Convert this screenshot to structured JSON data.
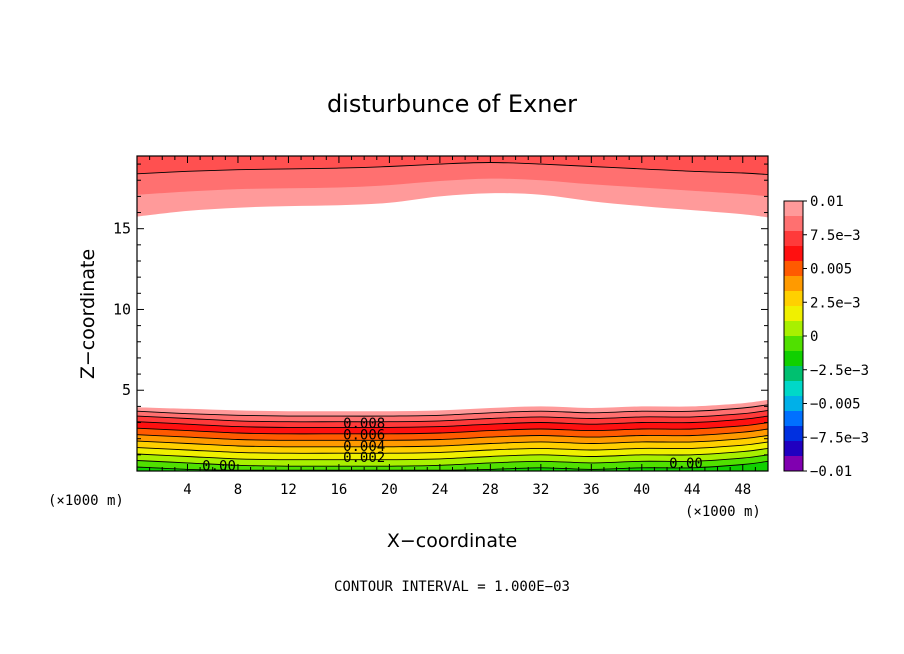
{
  "chart_data": {
    "type": "contour",
    "title": "disturbunce of Exner",
    "xlabel": "X−coordinate",
    "ylabel": "Z−coordinate",
    "x_unit_left": "(×1000 m)",
    "x_unit_right": "(×1000 m)",
    "footer": "CONTOUR INTERVAL = 1.000E−03",
    "xlim": [
      0,
      50
    ],
    "ylim": [
      0,
      19.5
    ],
    "x_ticks": [
      4,
      8,
      12,
      16,
      20,
      24,
      28,
      32,
      36,
      40,
      44,
      48
    ],
    "y_ticks": [
      5,
      10,
      15
    ],
    "contour_interval": 0.001,
    "contour_labels": [
      {
        "text": "0.008",
        "x": 18,
        "y": 2.65
      },
      {
        "text": "0.006",
        "x": 18,
        "y": 1.95
      },
      {
        "text": "0.004",
        "x": 18,
        "y": 1.25
      },
      {
        "text": "0.002",
        "x": 18,
        "y": 0.55
      },
      {
        "text": "0.00",
        "x": 6.5,
        "y": 0.02
      },
      {
        "text": "0.00",
        "x": 43.5,
        "y": 0.2
      }
    ],
    "colorbar": {
      "labels": [
        "0.01",
        "7.5e−3",
        "0.005",
        "2.5e−3",
        "0",
        "−2.5e−3",
        "−0.005",
        "−7.5e−3",
        "−0.01"
      ],
      "colors": [
        "#ff9a9a",
        "#ff7070",
        "#ff3a3a",
        "#ff1010",
        "#ff5a00",
        "#ff9a00",
        "#ffd000",
        "#f0f000",
        "#a8f000",
        "#50e000",
        "#10d000",
        "#00c070",
        "#00d8c8",
        "#00b0e8",
        "#0070ff",
        "#0030e0",
        "#2000c0",
        "#8000b0"
      ]
    },
    "bands": {
      "x": [
        0,
        4,
        8,
        12,
        16,
        20,
        24,
        28,
        32,
        36,
        40,
        44,
        48,
        50
      ],
      "lower_z": [
        [
          3.95,
          3.85,
          3.75,
          3.7,
          3.7,
          3.7,
          3.75,
          3.9,
          4.0,
          3.9,
          4.0,
          4.0,
          4.2,
          4.4
        ],
        [
          3.7,
          3.55,
          3.45,
          3.4,
          3.4,
          3.4,
          3.45,
          3.6,
          3.7,
          3.6,
          3.7,
          3.7,
          3.9,
          4.1
        ],
        [
          3.4,
          3.25,
          3.1,
          3.05,
          3.05,
          3.05,
          3.1,
          3.25,
          3.35,
          3.25,
          3.35,
          3.35,
          3.55,
          3.75
        ],
        [
          3.05,
          2.9,
          2.75,
          2.7,
          2.7,
          2.7,
          2.75,
          2.9,
          3.0,
          2.9,
          3.0,
          3.0,
          3.2,
          3.4
        ],
        [
          2.65,
          2.5,
          2.35,
          2.3,
          2.3,
          2.3,
          2.35,
          2.5,
          2.6,
          2.5,
          2.6,
          2.6,
          2.8,
          3.0
        ],
        [
          2.25,
          2.1,
          1.95,
          1.9,
          1.9,
          1.9,
          1.95,
          2.1,
          2.2,
          2.1,
          2.2,
          2.2,
          2.4,
          2.6
        ],
        [
          1.85,
          1.7,
          1.55,
          1.5,
          1.5,
          1.5,
          1.55,
          1.7,
          1.8,
          1.7,
          1.8,
          1.8,
          2.0,
          2.2
        ],
        [
          1.45,
          1.3,
          1.15,
          1.1,
          1.1,
          1.1,
          1.15,
          1.3,
          1.4,
          1.3,
          1.4,
          1.4,
          1.6,
          1.8
        ],
        [
          1.05,
          0.9,
          0.75,
          0.7,
          0.7,
          0.7,
          0.75,
          0.9,
          1.0,
          0.9,
          1.0,
          1.0,
          1.2,
          1.4
        ],
        [
          0.65,
          0.5,
          0.35,
          0.3,
          0.3,
          0.3,
          0.35,
          0.5,
          0.6,
          0.5,
          0.6,
          0.6,
          0.8,
          1.0
        ]
      ],
      "lower_colors": [
        "#ff9a9a",
        "#ff7070",
        "#ff3a3a",
        "#ff1010",
        "#ff5a00",
        "#ff9a00",
        "#ffd000",
        "#f0f000",
        "#a8f000",
        "#50e000"
      ],
      "lower_base_color": "#10d000",
      "upper_z": [
        [
          15.75,
          16.1,
          16.3,
          16.4,
          16.45,
          16.6,
          17.0,
          17.2,
          17.1,
          16.7,
          16.4,
          16.15,
          15.9,
          15.7
        ],
        [
          17.1,
          17.3,
          17.45,
          17.5,
          17.55,
          17.7,
          17.95,
          18.1,
          18.0,
          17.75,
          17.55,
          17.35,
          17.15,
          17.0
        ],
        [
          18.4,
          18.55,
          18.65,
          18.7,
          18.75,
          18.85,
          19.0,
          19.1,
          19.0,
          18.85,
          18.7,
          18.55,
          18.45,
          18.35
        ]
      ],
      "upper_colors": [
        "#ff9a9a",
        "#ff7070",
        "#ff5050"
      ],
      "upper_top_color": "#ff5050"
    }
  }
}
